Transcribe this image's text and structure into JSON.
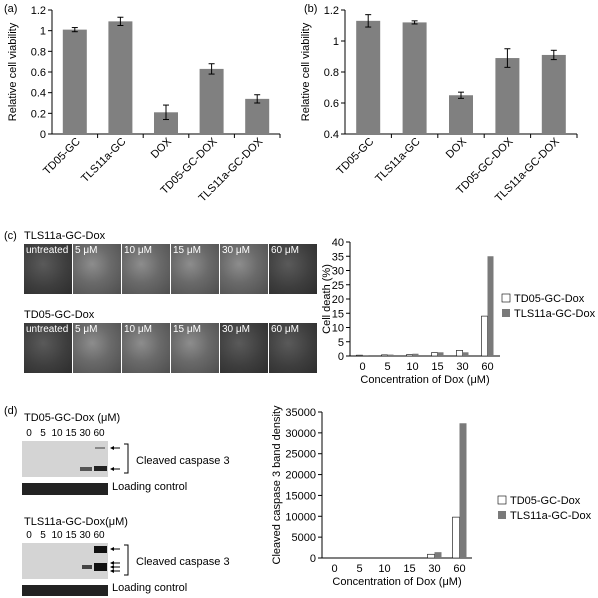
{
  "panel_labels": [
    "(a)",
    "(b)",
    "(c)",
    "(d)"
  ],
  "microscopy": {
    "row1_title": "TLS11a-GC-Dox",
    "row2_title": "TD05-GC-Dox",
    "panels": [
      "untreated",
      "5 μM",
      "10 μM",
      "15 μM",
      "30 μM",
      "60 μM"
    ]
  },
  "blots": {
    "blot1_title": "TD05-GC-Dox (μM)",
    "blot2_title": "TLS11a-GC-Dox(μM)",
    "lanes": [
      "0",
      "5",
      "10",
      "15",
      "30",
      "60"
    ],
    "band_label": "Cleaved caspase 3",
    "loading_label": "Loading control"
  },
  "chart_data": [
    {
      "type": "bar",
      "panel": "(a)",
      "categories": [
        "TD05-GC",
        "TLS11a-GC",
        "DOX",
        "TD05-GC-DOX",
        "TLS11a-GC-DOX"
      ],
      "values": [
        1.01,
        1.09,
        0.21,
        0.63,
        0.34
      ],
      "errors": [
        0.02,
        0.04,
        0.07,
        0.05,
        0.04
      ],
      "ylabel": "Relative cell viability",
      "ylim": [
        0,
        1.2
      ],
      "yticks": [
        "0",
        "0.2",
        "0.4",
        "0.6",
        "0.8",
        "1",
        "1.2"
      ],
      "color": "#808080"
    },
    {
      "type": "bar",
      "panel": "(b)",
      "categories": [
        "TD05-GC",
        "TLS11a-GC",
        "DOX",
        "TD05-GC-DOX",
        "TLS11a-GC-DOX"
      ],
      "values": [
        1.13,
        1.12,
        0.65,
        0.89,
        0.91
      ],
      "errors": [
        0.04,
        0.01,
        0.02,
        0.06,
        0.03
      ],
      "ylabel": "Relative cell viability",
      "ylim": [
        0.4,
        1.2
      ],
      "yticks": [
        "0.4",
        "0.6",
        "0.8",
        "1",
        "1.2"
      ],
      "color": "#808080"
    },
    {
      "type": "bar",
      "panel": "(c)",
      "categories": [
        "0",
        "5",
        "10",
        "15",
        "30",
        "60"
      ],
      "series": [
        {
          "name": "TD05-GC-Dox",
          "values": [
            0.3,
            0.4,
            0.5,
            1.2,
            2.0,
            14.0
          ],
          "color": "#ffffff"
        },
        {
          "name": "TLS11a-GC-Dox",
          "values": [
            0.3,
            0.5,
            0.8,
            1.3,
            1.3,
            35.0
          ],
          "color": "#7a7a7a"
        }
      ],
      "xlabel": "Concentration of Dox (μM)",
      "ylabel": "Cell death (%)",
      "ylim": [
        0,
        40
      ],
      "yticks": [
        "0",
        "5",
        "10",
        "15",
        "20",
        "25",
        "30",
        "35",
        "40"
      ],
      "legend": "right"
    },
    {
      "type": "bar",
      "panel": "(d)",
      "categories": [
        "0",
        "5",
        "10",
        "15",
        "30",
        "60"
      ],
      "series": [
        {
          "name": "TD05-GC-Dox",
          "values": [
            0,
            0,
            0,
            0,
            900,
            9800
          ],
          "color": "#ffffff"
        },
        {
          "name": "TLS11a-GC-Dox",
          "values": [
            0,
            0,
            0,
            0,
            1400,
            32300
          ],
          "color": "#7a7a7a"
        }
      ],
      "xlabel": "Concentration of Dox (μM)",
      "ylabel": "Cleaved caspase 3 band density",
      "ylim": [
        0,
        35000
      ],
      "yticks": [
        "0",
        "5000",
        "10000",
        "15000",
        "20000",
        "25000",
        "30000",
        "35000"
      ],
      "legend": "right"
    }
  ]
}
